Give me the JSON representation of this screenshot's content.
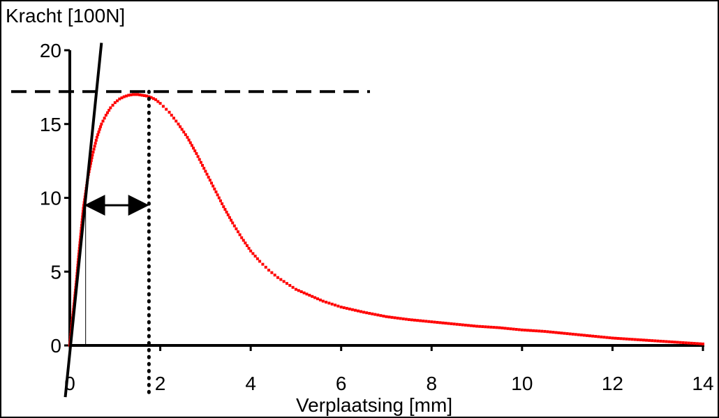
{
  "chart_data": {
    "type": "scatter",
    "title": "",
    "xlabel": "Verplaatsing [mm]",
    "ylabel": "Kracht [100N]",
    "xlim": [
      0,
      14
    ],
    "ylim": [
      0,
      20
    ],
    "x_ticks": [
      "0",
      "2",
      "4",
      "6",
      "8",
      "10",
      "12",
      "14"
    ],
    "y_ticks": [
      "0",
      "5",
      "10",
      "15",
      "20"
    ],
    "grid": false,
    "legend": "none",
    "colors": {
      "series": "#ff0000",
      "axes": "#000000",
      "annotation": "#000000"
    },
    "series": [
      {
        "x": [
          0.0,
          0.05,
          0.1,
          0.15,
          0.2,
          0.3,
          0.4,
          0.5,
          0.6,
          0.7,
          0.8,
          0.9,
          1.0,
          1.1,
          1.2,
          1.3,
          1.4,
          1.5,
          1.6,
          1.7,
          1.8,
          1.9,
          2.0,
          2.2,
          2.4,
          2.6,
          2.8,
          3.0,
          3.2,
          3.4,
          3.6,
          3.8,
          4.0,
          4.2,
          4.4,
          4.6,
          4.8,
          5.0,
          5.3,
          5.6,
          6.0,
          6.5,
          7.0,
          7.5,
          8.0,
          8.5,
          9.0,
          9.5,
          10.0,
          10.5,
          11.0,
          11.5,
          12.0,
          12.5,
          13.0,
          13.5,
          14.0
        ],
        "y": [
          0.0,
          1.5,
          3.0,
          4.5,
          6.2,
          9.3,
          11.4,
          12.9,
          14.1,
          15.0,
          15.6,
          16.1,
          16.45,
          16.7,
          16.85,
          16.95,
          17.0,
          17.0,
          16.95,
          16.9,
          16.8,
          16.65,
          16.4,
          15.8,
          15.0,
          14.1,
          13.0,
          11.8,
          10.6,
          9.4,
          8.3,
          7.3,
          6.4,
          5.7,
          5.1,
          4.6,
          4.2,
          3.8,
          3.4,
          3.0,
          2.6,
          2.25,
          1.95,
          1.75,
          1.6,
          1.45,
          1.3,
          1.2,
          1.05,
          0.95,
          0.8,
          0.65,
          0.5,
          0.4,
          0.3,
          0.2,
          0.1
        ]
      }
    ],
    "annotations": {
      "max_force": 17.2,
      "max_displacement": 1.75,
      "tangent_line": {
        "x": [
          -0.1,
          0.7
        ],
        "y": [
          -3.5,
          20.5
        ]
      },
      "arrow": {
        "x_start": 0.35,
        "x_end": 1.6,
        "y": 9.5
      },
      "vertical_line_x": 0.35
    }
  }
}
